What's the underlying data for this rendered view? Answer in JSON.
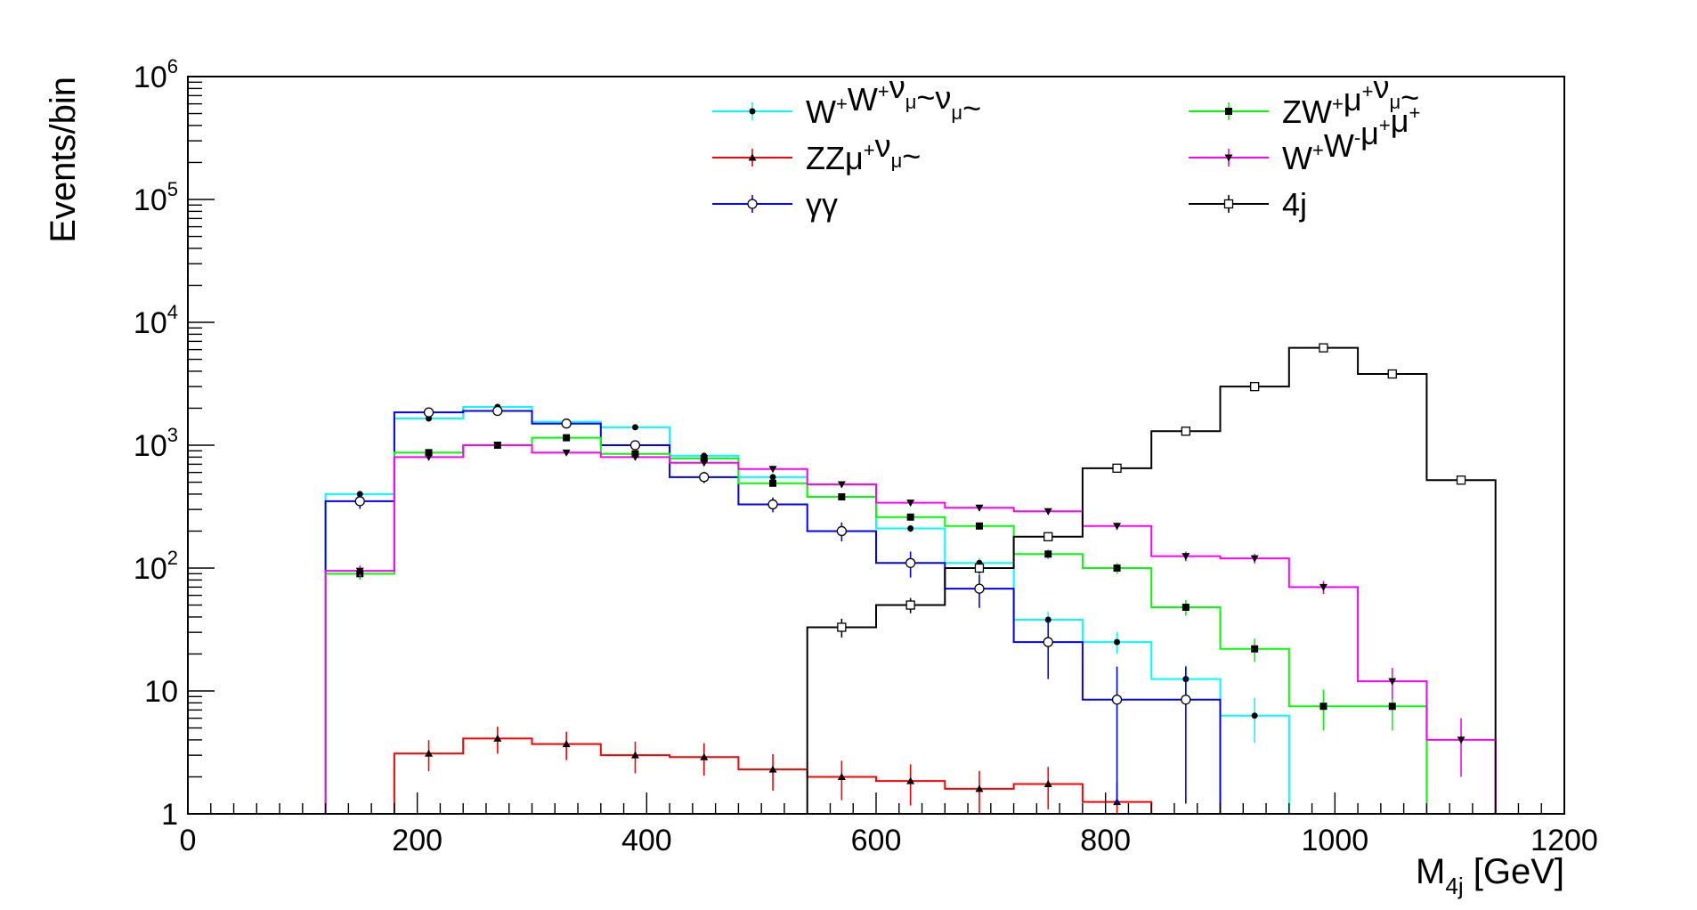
{
  "chart_data": {
    "type": "step-histogram",
    "title": "",
    "xlabel": "M",
    "xlabel_sub": "4j",
    "xlabel_unit": " [GeV]",
    "ylabel": "Events/bin",
    "yscale": "log",
    "xlim": [
      0,
      1200
    ],
    "ylim": [
      1,
      1000000
    ],
    "x_tick_values": [
      0,
      200,
      400,
      600,
      800,
      1000,
      1200
    ],
    "x_tick_labels": [
      "0",
      "200",
      "400",
      "600",
      "800",
      "1000",
      "1200"
    ],
    "y_tick_values": [
      1,
      10,
      100,
      1000,
      10000,
      100000,
      1000000
    ],
    "y_tick_labels": [
      {
        "base": "1",
        "exp": ""
      },
      {
        "base": "10",
        "exp": ""
      },
      {
        "base": "10",
        "exp": "2"
      },
      {
        "base": "10",
        "exp": "3"
      },
      {
        "base": "10",
        "exp": "4"
      },
      {
        "base": "10",
        "exp": "5"
      },
      {
        "base": "10",
        "exp": "6"
      }
    ],
    "bin_width": 60,
    "bin_starts": [
      0,
      60,
      120,
      180,
      240,
      300,
      360,
      420,
      480,
      540,
      600,
      660,
      720,
      780,
      840,
      900,
      960,
      1020,
      1080,
      1140
    ],
    "series": [
      {
        "name": "W+W+νμ~νμ~",
        "legend_parts": [
          [
            "W",
            ""
          ],
          [
            "+",
            "sup"
          ],
          [
            "W",
            ""
          ],
          [
            "+",
            "sup"
          ],
          [
            "ν",
            ""
          ],
          [
            "μ",
            "sub"
          ],
          [
            "~ν",
            ""
          ],
          [
            "μ",
            "sub"
          ],
          [
            "~",
            ""
          ]
        ],
        "color": "#00ffff",
        "marker": "dot",
        "values": [
          0,
          0,
          400,
          1650,
          2050,
          1550,
          1400,
          820,
          550,
          380,
          210,
          110,
          38,
          25,
          12.5,
          6.3,
          0,
          0,
          0,
          0
        ]
      },
      {
        "name": "ZZμ+νμ~",
        "legend_parts": [
          [
            "ZZμ",
            ""
          ],
          [
            "+",
            "sup"
          ],
          [
            "ν",
            ""
          ],
          [
            "μ",
            "sub"
          ],
          [
            "~",
            ""
          ]
        ],
        "color": "#ff0000",
        "marker": "triangle-up",
        "values": [
          0,
          0,
          0,
          3.1,
          4.1,
          3.7,
          3.0,
          2.9,
          2.3,
          2.0,
          1.85,
          1.6,
          1.75,
          1.25,
          0,
          0,
          0,
          0,
          0,
          0
        ]
      },
      {
        "name": "γγ",
        "legend_parts": [
          [
            "γγ",
            ""
          ]
        ],
        "color": "#0000ff",
        "marker": "open-circle",
        "values": [
          0,
          0,
          350,
          1850,
          1900,
          1500,
          1000,
          550,
          330,
          200,
          110,
          68,
          25,
          8.5,
          8.5,
          0,
          0,
          0,
          0,
          0
        ]
      },
      {
        "name": "ZW+μ+νμ~",
        "legend_parts": [
          [
            "ZW",
            ""
          ],
          [
            "+",
            "sup"
          ],
          [
            "μ",
            ""
          ],
          [
            "+",
            "sup"
          ],
          [
            "ν",
            ""
          ],
          [
            "μ",
            "sub"
          ],
          [
            "~",
            ""
          ]
        ],
        "color": "#00ff00",
        "marker": "square",
        "values": [
          0,
          0,
          90,
          870,
          1000,
          1150,
          850,
          780,
          490,
          380,
          260,
          220,
          130,
          100,
          48,
          22,
          7.5,
          7.5,
          0,
          0
        ]
      },
      {
        "name": "W+W-μ+μ+",
        "legend_parts": [
          [
            "W",
            ""
          ],
          [
            "+",
            "sup"
          ],
          [
            "W",
            ""
          ],
          [
            "-",
            "sup"
          ],
          [
            "μ",
            ""
          ],
          [
            "+",
            "sup"
          ],
          [
            "μ",
            ""
          ],
          [
            "+",
            "sup"
          ]
        ],
        "color": "#ff00ff",
        "marker": "triangle-down",
        "values": [
          0,
          0,
          95,
          800,
          1000,
          870,
          800,
          720,
          640,
          480,
          340,
          310,
          290,
          220,
          125,
          120,
          70,
          12,
          4,
          0
        ]
      },
      {
        "name": "4j",
        "legend_parts": [
          [
            "4j",
            ""
          ]
        ],
        "color": "#000000",
        "marker": "open-square",
        "values": [
          0,
          0,
          0,
          0,
          0,
          0,
          0,
          0,
          0,
          33,
          50,
          100,
          180,
          650,
          1300,
          3000,
          6200,
          3800,
          520,
          0
        ]
      }
    ]
  }
}
